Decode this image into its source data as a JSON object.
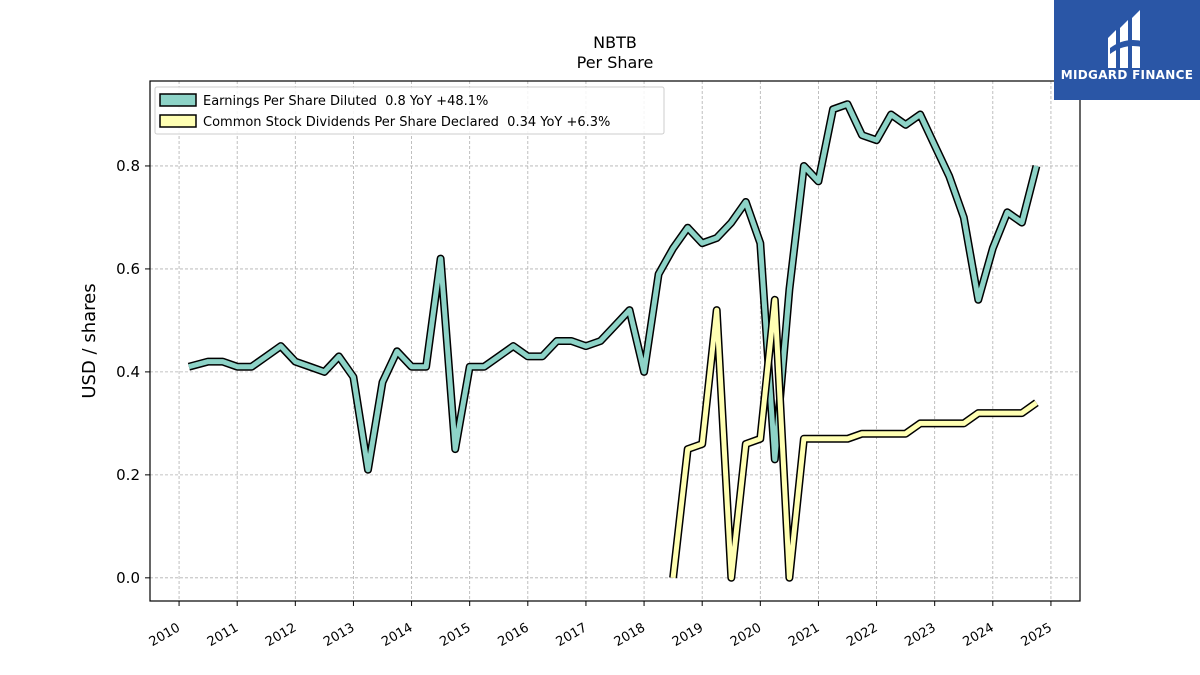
{
  "chart_data": {
    "type": "line",
    "title": "NBTB",
    "subtitle": "Per  Share",
    "ylabel": "USD / shares",
    "xlabel": "",
    "ylim": [
      -0.045,
      0.965
    ],
    "xlim": [
      2009.5,
      2025.5
    ],
    "yticks": [
      0.0,
      0.2,
      0.4,
      0.6,
      0.8
    ],
    "ytick_labels": [
      "0.0",
      "0.2",
      "0.4",
      "0.6",
      "0.8"
    ],
    "xticks": [
      2010,
      2011,
      2012,
      2013,
      2014,
      2015,
      2016,
      2017,
      2018,
      2019,
      2020,
      2021,
      2022,
      2023,
      2024,
      2025
    ],
    "xtick_labels": [
      "2010",
      "2011",
      "2012",
      "2013",
      "2014",
      "2015",
      "2016",
      "2017",
      "2018",
      "2019",
      "2020",
      "2021",
      "2022",
      "2023",
      "2024",
      "2025"
    ],
    "grid": true,
    "legend_position": "top-left",
    "series": [
      {
        "name": "Earnings Per Share Diluted  0.8 YoY +48.1%",
        "color": "#8dd3c7",
        "points": [
          [
            2010.17,
            0.41
          ],
          [
            2010.5,
            0.42
          ],
          [
            2010.75,
            0.42
          ],
          [
            2011.0,
            0.41
          ],
          [
            2011.25,
            0.41
          ],
          [
            2011.5,
            0.43
          ],
          [
            2011.75,
            0.45
          ],
          [
            2012.0,
            0.42
          ],
          [
            2012.25,
            0.41
          ],
          [
            2012.5,
            0.4
          ],
          [
            2012.75,
            0.43
          ],
          [
            2013.0,
            0.39
          ],
          [
            2013.25,
            0.21
          ],
          [
            2013.5,
            0.38
          ],
          [
            2013.75,
            0.44
          ],
          [
            2014.0,
            0.41
          ],
          [
            2014.25,
            0.41
          ],
          [
            2014.5,
            0.62
          ],
          [
            2014.75,
            0.25
          ],
          [
            2015.0,
            0.41
          ],
          [
            2015.25,
            0.41
          ],
          [
            2015.5,
            0.43
          ],
          [
            2015.75,
            0.45
          ],
          [
            2016.0,
            0.43
          ],
          [
            2016.25,
            0.43
          ],
          [
            2016.5,
            0.46
          ],
          [
            2016.75,
            0.46
          ],
          [
            2017.0,
            0.45
          ],
          [
            2017.25,
            0.46
          ],
          [
            2017.5,
            0.49
          ],
          [
            2017.75,
            0.52
          ],
          [
            2018.0,
            0.4
          ],
          [
            2018.25,
            0.59
          ],
          [
            2018.5,
            0.64
          ],
          [
            2018.75,
            0.68
          ],
          [
            2019.0,
            0.65
          ],
          [
            2019.25,
            0.66
          ],
          [
            2019.5,
            0.69
          ],
          [
            2019.75,
            0.73
          ],
          [
            2020.0,
            0.65
          ],
          [
            2020.25,
            0.23
          ],
          [
            2020.5,
            0.56
          ],
          [
            2020.75,
            0.8
          ],
          [
            2021.0,
            0.77
          ],
          [
            2021.25,
            0.91
          ],
          [
            2021.5,
            0.92
          ],
          [
            2021.75,
            0.86
          ],
          [
            2022.0,
            0.85
          ],
          [
            2022.25,
            0.9
          ],
          [
            2022.5,
            0.88
          ],
          [
            2022.75,
            0.9
          ],
          [
            2023.0,
            0.84
          ],
          [
            2023.25,
            0.78
          ],
          [
            2023.5,
            0.7
          ],
          [
            2023.75,
            0.54
          ],
          [
            2024.0,
            0.64
          ],
          [
            2024.25,
            0.71
          ],
          [
            2024.5,
            0.69
          ],
          [
            2024.75,
            0.8
          ]
        ]
      },
      {
        "name": "Common Stock Dividends Per Share Declared  0.34 YoY +6.3%",
        "color": "#ffffb3",
        "points": [
          [
            2018.5,
            0.0
          ],
          [
            2018.75,
            0.25
          ],
          [
            2019.0,
            0.26
          ],
          [
            2019.25,
            0.52
          ],
          [
            2019.5,
            0.0
          ],
          [
            2019.75,
            0.26
          ],
          [
            2020.0,
            0.27
          ],
          [
            2020.25,
            0.54
          ],
          [
            2020.5,
            0.0
          ],
          [
            2020.75,
            0.27
          ],
          [
            2021.0,
            0.27
          ],
          [
            2021.25,
            0.27
          ],
          [
            2021.5,
            0.27
          ],
          [
            2021.75,
            0.28
          ],
          [
            2022.0,
            0.28
          ],
          [
            2022.25,
            0.28
          ],
          [
            2022.5,
            0.28
          ],
          [
            2022.75,
            0.3
          ],
          [
            2023.0,
            0.3
          ],
          [
            2023.25,
            0.3
          ],
          [
            2023.5,
            0.3
          ],
          [
            2023.75,
            0.32
          ],
          [
            2024.0,
            0.32
          ],
          [
            2024.25,
            0.32
          ],
          [
            2024.5,
            0.32
          ],
          [
            2024.75,
            0.34
          ]
        ]
      }
    ]
  },
  "logo": {
    "text": "MIDGARD FINANCE",
    "color": "#2a56a6",
    "icon": "midgard-logo-icon"
  }
}
